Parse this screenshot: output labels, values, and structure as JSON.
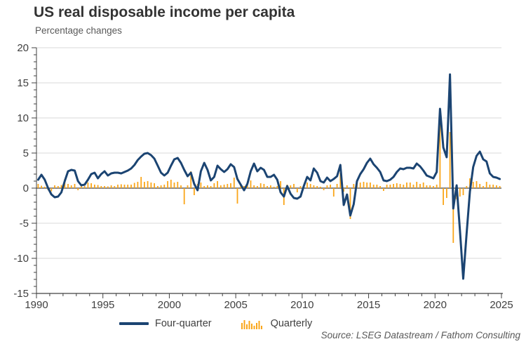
{
  "title": "US real disposable income per capita",
  "subtitle": "Percentage changes",
  "source": "Source: LSEG Datastream / Fathom Consulting",
  "legend": {
    "line_label": "Four-quarter",
    "bars_label": "Quarterly"
  },
  "colors": {
    "line": "#1b4472",
    "bars": "#faa61a",
    "grid": "#d9d9d9",
    "axis": "#404040",
    "zero_line": "#404040",
    "tick_text": "#404040",
    "title": "#333333",
    "subtitle": "#595959",
    "source": "#595959"
  },
  "chart_data": {
    "type": "line+bar",
    "title": "US real disposable income per capita",
    "subtitle": "Percentage changes",
    "xlabel": "",
    "ylabel": "Percentage changes",
    "xlim": [
      1990,
      2025
    ],
    "ylim": [
      -15,
      20
    ],
    "x_ticks": [
      1990,
      1995,
      2000,
      2005,
      2010,
      2015,
      2020,
      2025
    ],
    "y_ticks": [
      20,
      15,
      10,
      5,
      0,
      -5,
      -10,
      -15
    ],
    "grid": "horizontal",
    "legend_position": "bottom",
    "x_start": 1990.125,
    "x_step": 0.25,
    "series": [
      {
        "name": "Four-quarter",
        "type": "line",
        "values": [
          1.2,
          1.9,
          1.2,
          0.0,
          -0.9,
          -1.3,
          -1.2,
          -0.6,
          1.0,
          2.4,
          2.6,
          2.5,
          1.0,
          0.4,
          0.5,
          1.2,
          2.0,
          2.2,
          1.4,
          2.0,
          2.4,
          1.8,
          2.1,
          2.2,
          2.2,
          2.1,
          2.3,
          2.5,
          2.8,
          3.3,
          4.0,
          4.5,
          4.9,
          5.0,
          4.7,
          4.2,
          3.2,
          2.2,
          1.8,
          2.2,
          3.2,
          4.1,
          4.3,
          3.6,
          2.6,
          1.7,
          2.2,
          0.6,
          -0.3,
          2.4,
          3.6,
          2.6,
          1.1,
          1.6,
          3.2,
          2.7,
          2.3,
          2.7,
          3.4,
          3.0,
          1.3,
          0.5,
          -0.3,
          0.6,
          2.4,
          3.5,
          2.4,
          2.9,
          2.6,
          1.6,
          1.6,
          1.9,
          1.2,
          -0.6,
          -1.2,
          0.3,
          -0.8,
          -1.4,
          -1.5,
          -1.2,
          0.3,
          1.6,
          1.1,
          2.8,
          2.2,
          1.0,
          0.8,
          1.5,
          1.0,
          1.3,
          1.7,
          3.3,
          -2.4,
          -0.9,
          -3.9,
          -2.3,
          1.0,
          2.0,
          2.7,
          3.6,
          4.2,
          3.4,
          2.9,
          2.3,
          1.1,
          1.0,
          1.2,
          1.6,
          2.3,
          2.8,
          2.7,
          2.9,
          2.9,
          2.8,
          3.5,
          3.1,
          2.5,
          1.8,
          1.6,
          1.4,
          2.3,
          11.3,
          5.8,
          4.4,
          16.2,
          -2.9,
          0.4,
          -6.0,
          -12.9,
          -6.5,
          -0.5,
          3.0,
          4.6,
          5.2,
          4.1,
          3.8,
          2.1,
          1.6,
          1.5,
          1.3
        ]
      },
      {
        "name": "Quarterly",
        "type": "bar",
        "values": [
          0.6,
          0.35,
          0.2,
          -0.3,
          -0.45,
          0.4,
          0.3,
          0.45,
          1.3,
          0.6,
          0.4,
          0.6,
          -0.3,
          0.5,
          0.3,
          0.8,
          0.7,
          0.5,
          0.45,
          0.3,
          0.3,
          0.25,
          0.4,
          0.3,
          0.5,
          0.55,
          0.5,
          0.5,
          0.5,
          0.75,
          0.9,
          1.6,
          0.9,
          1.0,
          0.8,
          0.7,
          0.3,
          0.4,
          0.5,
          1.0,
          1.2,
          0.8,
          0.9,
          0.4,
          -2.3,
          0.4,
          2.4,
          -1.0,
          0.6,
          0.8,
          0.3,
          0.4,
          0.3,
          0.7,
          1.0,
          0.4,
          0.5,
          0.6,
          0.7,
          1.5,
          -2.2,
          0.5,
          0.3,
          0.6,
          1.1,
          0.4,
          0.3,
          0.7,
          0.6,
          0.3,
          0.4,
          0.2,
          0.3,
          1.0,
          -2.4,
          0.5,
          0.4,
          0.6,
          -0.6,
          0.3,
          0.5,
          0.8,
          0.6,
          0.4,
          0.3,
          0.2,
          -0.3,
          0.4,
          0.5,
          -1.2,
          0.6,
          2.2,
          -0.5,
          0.4,
          -4.4,
          0.6,
          0.7,
          0.8,
          0.9,
          0.8,
          0.8,
          0.5,
          0.5,
          0.3,
          -0.4,
          0.5,
          0.5,
          0.6,
          0.7,
          0.6,
          0.5,
          0.8,
          0.8,
          0.5,
          0.9,
          0.6,
          0.8,
          0.4,
          0.4,
          0.3,
          0.5,
          9.3,
          -2.4,
          -1.4,
          8.0,
          -7.8,
          -1.6,
          -1.2,
          -1.0,
          0.3,
          1.4,
          0.9,
          1.0,
          0.6,
          0.3,
          0.9,
          0.5,
          0.5,
          0.4,
          0.3
        ]
      }
    ]
  }
}
